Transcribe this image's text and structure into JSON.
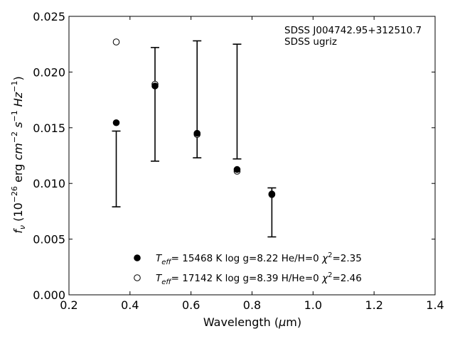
{
  "chart_data": {
    "type": "scatter",
    "title": "",
    "xlabel": "Wavelength (μm)",
    "ylabel": "f_ν (10^-26 erg cm^-2 s^-1 Hz^-1)",
    "xlim": [
      0.2,
      1.4
    ],
    "ylim": [
      0.0,
      0.025
    ],
    "x_ticks": [
      "0.2",
      "0.4",
      "0.6",
      "0.8",
      "1.0",
      "1.2",
      "1.4"
    ],
    "y_ticks": [
      "0.000",
      "0.005",
      "0.010",
      "0.015",
      "0.020",
      "0.025"
    ],
    "grid": false,
    "annotations": [
      "SDSS J004742.95+312510.7",
      "SDSS ugriz"
    ],
    "legend_position": "bottom-center",
    "observed": [
      {
        "x": 0.355,
        "low": 0.0079,
        "high": 0.0147
      },
      {
        "x": 0.482,
        "low": 0.012,
        "high": 0.0222
      },
      {
        "x": 0.62,
        "low": 0.0123,
        "high": 0.0228
      },
      {
        "x": 0.751,
        "low": 0.0122,
        "high": 0.0225
      },
      {
        "x": 0.865,
        "low": 0.0052,
        "high": 0.0096
      }
    ],
    "series": [
      {
        "name": "T_eff= 15468 K  log g=8.22  He/H=0  χ²=2.35",
        "marker": "filled-circle",
        "x": [
          0.355,
          0.482,
          0.62,
          0.751,
          0.865
        ],
        "y": [
          0.01545,
          0.01875,
          0.0145,
          0.01125,
          0.00905
        ]
      },
      {
        "name": "T_eff= 17142 K  log g=8.39  H/He=0  χ²=2.46",
        "marker": "open-circle",
        "x": [
          0.355,
          0.482,
          0.62,
          0.751,
          0.865
        ],
        "y": [
          0.0227,
          0.0189,
          0.0144,
          0.0111,
          0.009
        ]
      }
    ]
  }
}
